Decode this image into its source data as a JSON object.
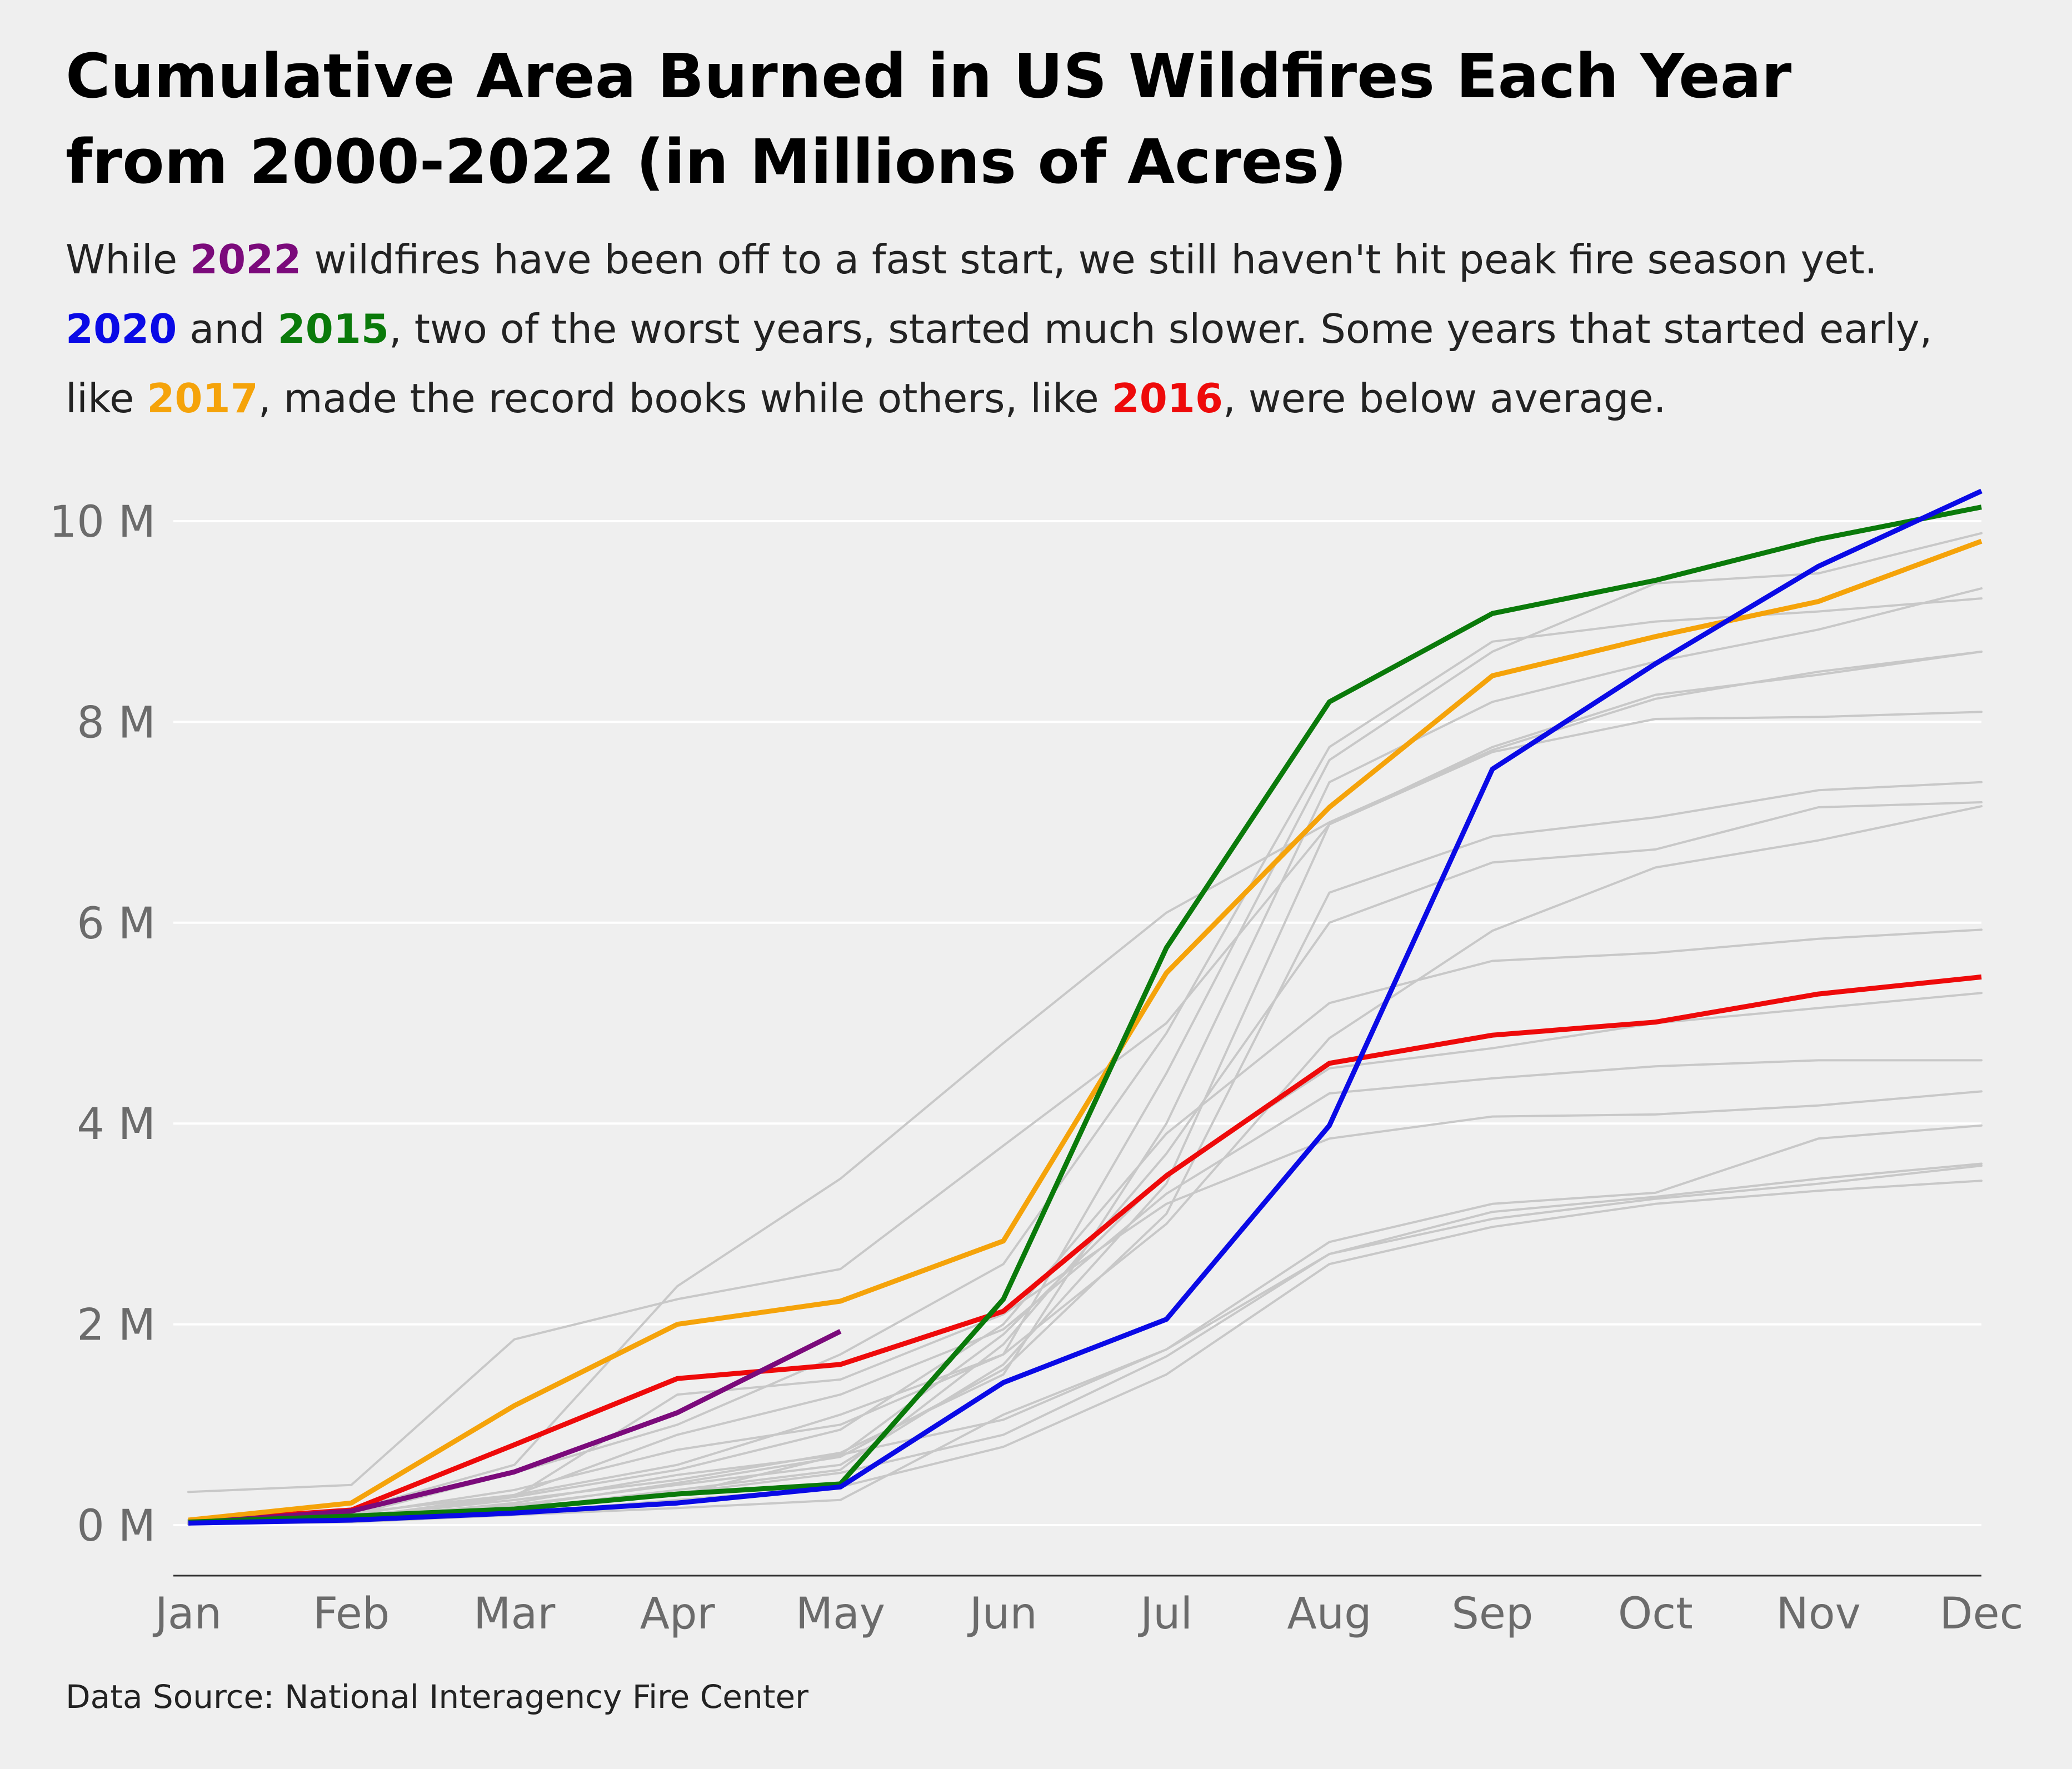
{
  "title": {
    "line1": "Cumulative Area Burned in US Wildfires Each Year",
    "line2": "from 2000-2022 (in Millions of Acres)"
  },
  "subtitle": {
    "l1_a": "While ",
    "l1_y2022": "2022",
    "l1_b": " wildfires have been off to a fast start, we still haven't hit peak fire season yet.",
    "l2_y2020": "2020",
    "l2_a": " and ",
    "l2_y2015": "2015",
    "l2_b": ", two of the worst years, started much slower. Some years that started early,",
    "l3_a": "like ",
    "l3_y2017": "2017",
    "l3_b": ", made the record books while others, like ",
    "l3_y2016": "2016",
    "l3_c": ", were below average."
  },
  "source": "Data Source: National Interagency Fire Center",
  "colors": {
    "background": "#efefef",
    "gridline": "#ffffff",
    "background_series": "#c8c8c8",
    "y2022": "#7b0a7b",
    "y2020": "#0a0ae6",
    "y2015": "#0a7a0a",
    "y2017": "#f5a30a",
    "y2016": "#ee0a0a"
  },
  "chart_data": {
    "type": "line",
    "title": "Cumulative Area Burned in US Wildfires Each Year from 2000-2022 (in Millions of Acres)",
    "xlabel": "",
    "ylabel": "",
    "categories": [
      "Jan",
      "Feb",
      "Mar",
      "Apr",
      "May",
      "Jun",
      "Jul",
      "Aug",
      "Sep",
      "Oct",
      "Nov",
      "Dec"
    ],
    "ylim": [
      -0.5,
      10.3
    ],
    "y_ticks": [
      0,
      2,
      4,
      6,
      8,
      10
    ],
    "y_tick_labels": [
      "0 M",
      "2 M",
      "4 M",
      "6 M",
      "8 M",
      "10 M"
    ],
    "grid": "horizontal",
    "legend": "none",
    "highlighted_series": [
      {
        "name": "2022",
        "color": "#7b0a7b",
        "values": [
          0.02,
          0.14,
          0.53,
          1.12,
          1.93,
          null,
          null,
          null,
          null,
          null,
          null,
          null
        ]
      },
      {
        "name": "2020",
        "color": "#0a0ae6",
        "values": [
          0.02,
          0.05,
          0.12,
          0.22,
          0.38,
          1.42,
          2.05,
          3.98,
          7.53,
          8.58,
          9.55,
          10.3
        ]
      },
      {
        "name": "2015",
        "color": "#0a7a0a",
        "values": [
          0.03,
          0.09,
          0.16,
          0.31,
          0.41,
          2.25,
          5.75,
          8.2,
          9.08,
          9.41,
          9.82,
          10.14
        ]
      },
      {
        "name": "2017",
        "color": "#f5a30a",
        "values": [
          0.05,
          0.22,
          1.19,
          2.0,
          2.23,
          2.83,
          5.5,
          7.15,
          8.46,
          8.85,
          9.2,
          9.8
        ]
      },
      {
        "name": "2016",
        "color": "#ee0a0a",
        "values": [
          0.04,
          0.15,
          0.8,
          1.46,
          1.6,
          2.13,
          3.48,
          4.6,
          4.88,
          5.01,
          5.29,
          5.46
        ]
      }
    ],
    "background_series": [
      {
        "values": [
          0.33,
          0.4,
          1.85,
          2.25,
          2.55,
          3.78,
          5.0,
          6.98,
          7.75,
          8.27,
          8.47,
          8.7
        ]
      },
      {
        "values": [
          0.05,
          0.15,
          0.6,
          2.38,
          3.45,
          4.8,
          6.1,
          7.0,
          7.72,
          8.23,
          8.5,
          8.7
        ]
      },
      {
        "values": [
          0.02,
          0.1,
          0.52,
          1.0,
          1.7,
          2.6,
          4.9,
          7.75,
          8.8,
          9.0,
          9.1,
          9.23
        ]
      },
      {
        "values": [
          0.03,
          0.12,
          0.3,
          0.6,
          1.1,
          1.7,
          4.5,
          7.62,
          8.7,
          9.38,
          9.48,
          9.88
        ]
      },
      {
        "values": [
          0.02,
          0.08,
          0.25,
          0.45,
          0.72,
          1.5,
          4.0,
          7.4,
          8.2,
          8.6,
          8.92,
          9.33
        ]
      },
      {
        "values": [
          0.02,
          0.07,
          0.2,
          0.4,
          0.6,
          1.6,
          3.4,
          6.98,
          7.7,
          8.03,
          8.05,
          8.1
        ]
      },
      {
        "values": [
          0.01,
          0.06,
          0.18,
          0.42,
          0.68,
          1.55,
          3.1,
          6.3,
          6.86,
          7.05,
          7.32,
          7.4
        ]
      },
      {
        "values": [
          0.02,
          0.05,
          0.16,
          0.35,
          0.55,
          1.8,
          3.7,
          6.0,
          6.6,
          6.73,
          7.15,
          7.2
        ]
      },
      {
        "values": [
          0.03,
          0.1,
          0.35,
          0.75,
          1.0,
          1.7,
          3.0,
          4.85,
          5.92,
          6.55,
          6.82,
          7.16
        ]
      },
      {
        "values": [
          0.02,
          0.08,
          0.28,
          0.55,
          0.95,
          2.0,
          3.9,
          5.2,
          5.62,
          5.7,
          5.84,
          5.93
        ]
      },
      {
        "values": [
          0.01,
          0.06,
          0.22,
          0.5,
          0.7,
          1.9,
          3.5,
          4.55,
          4.75,
          5.0,
          5.15,
          5.3
        ]
      },
      {
        "values": [
          0.02,
          0.07,
          0.3,
          0.9,
          1.3,
          1.95,
          3.3,
          4.3,
          4.45,
          4.57,
          4.63,
          4.63
        ]
      },
      {
        "values": [
          0.01,
          0.05,
          0.28,
          1.3,
          1.45,
          2.1,
          3.2,
          3.85,
          4.07,
          4.09,
          4.18,
          4.32
        ]
      },
      {
        "values": [
          0.01,
          0.05,
          0.15,
          0.3,
          0.7,
          1.05,
          1.75,
          2.82,
          3.2,
          3.31,
          3.85,
          3.98
        ]
      },
      {
        "values": [
          0.02,
          0.06,
          0.17,
          0.32,
          0.52,
          0.9,
          1.68,
          2.7,
          3.12,
          3.27,
          3.45,
          3.6
        ]
      },
      {
        "values": [
          0.01,
          0.04,
          0.12,
          0.25,
          0.38,
          0.78,
          1.5,
          2.6,
          2.97,
          3.2,
          3.33,
          3.43
        ]
      },
      {
        "values": [
          0.01,
          0.03,
          0.1,
          0.17,
          0.25,
          1.1,
          1.75,
          2.7,
          3.05,
          3.25,
          3.4,
          3.58
        ]
      }
    ]
  }
}
